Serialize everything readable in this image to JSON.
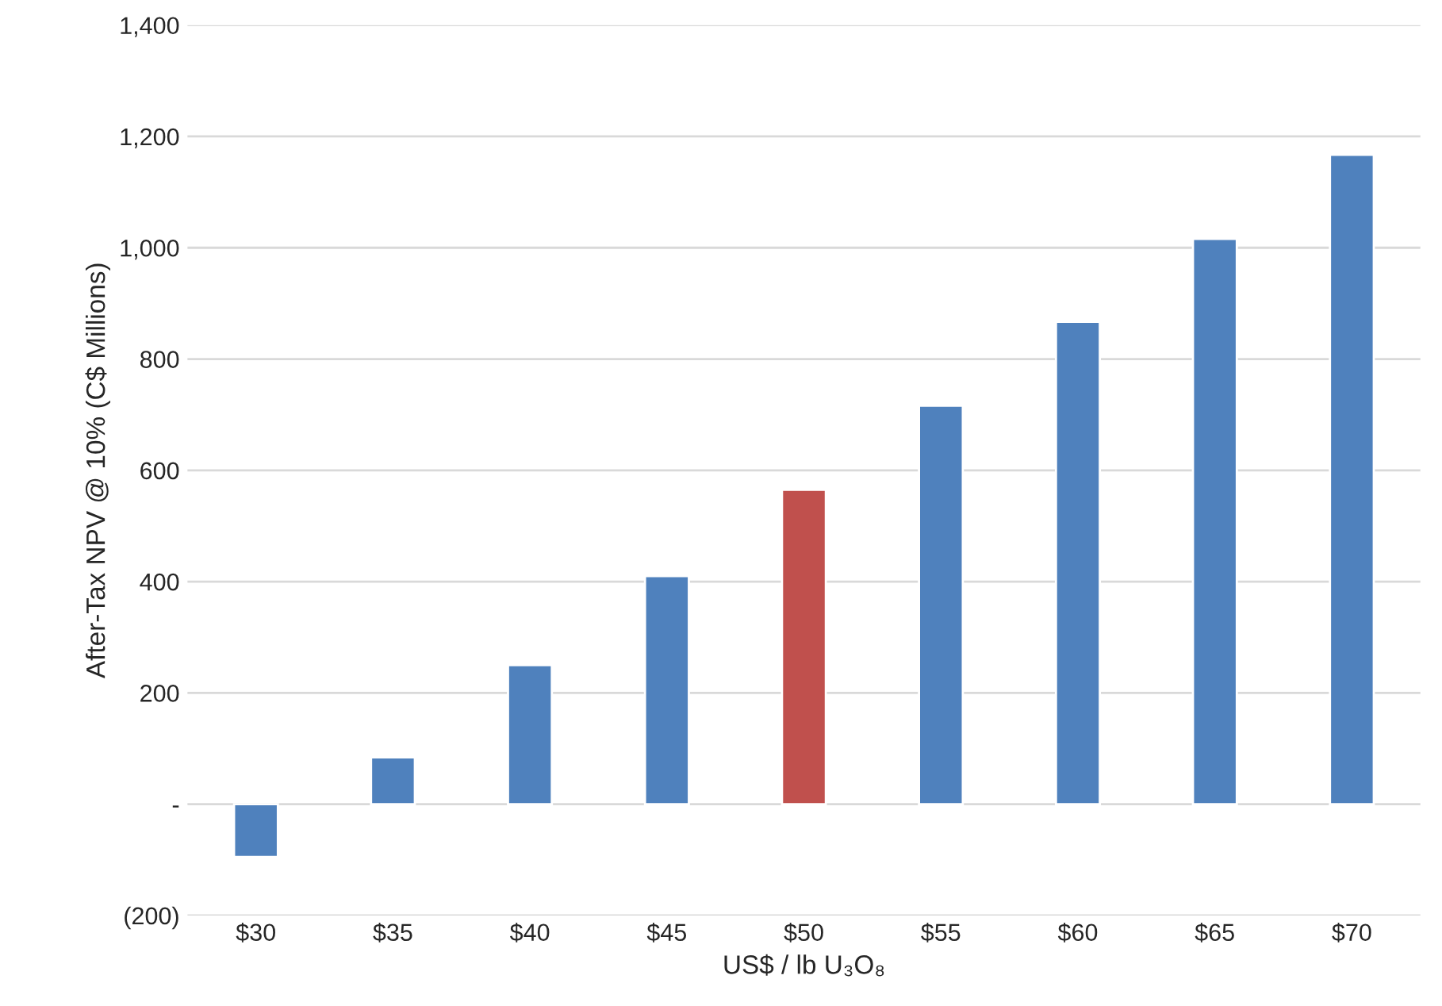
{
  "chart_data": {
    "type": "bar",
    "categories": [
      "$30",
      "$35",
      "$40",
      "$45",
      "$50",
      "$55",
      "$60",
      "$65",
      "$70"
    ],
    "values": [
      -95,
      84,
      250,
      410,
      565,
      716,
      867,
      1016,
      1167
    ],
    "colors": [
      "#4f81bd",
      "#4f81bd",
      "#4f81bd",
      "#4f81bd",
      "#c0504d",
      "#4f81bd",
      "#4f81bd",
      "#4f81bd",
      "#4f81bd"
    ],
    "xlabel": "US$ / lb U₃O₈",
    "ylabel": "After-Tax NPV @ 10% (C$ Millions)",
    "ylim": [
      -200,
      1400
    ],
    "yticks": [
      {
        "value": -200,
        "label": "(200)"
      },
      {
        "value": 0,
        "label": "-"
      },
      {
        "value": 200,
        "label": "200"
      },
      {
        "value": 400,
        "label": "400"
      },
      {
        "value": 600,
        "label": "600"
      },
      {
        "value": 800,
        "label": "800"
      },
      {
        "value": 1000,
        "label": "1,000"
      },
      {
        "value": 1200,
        "label": "1,200"
      },
      {
        "value": 1400,
        "label": "1,400"
      }
    ],
    "grid": "y"
  }
}
